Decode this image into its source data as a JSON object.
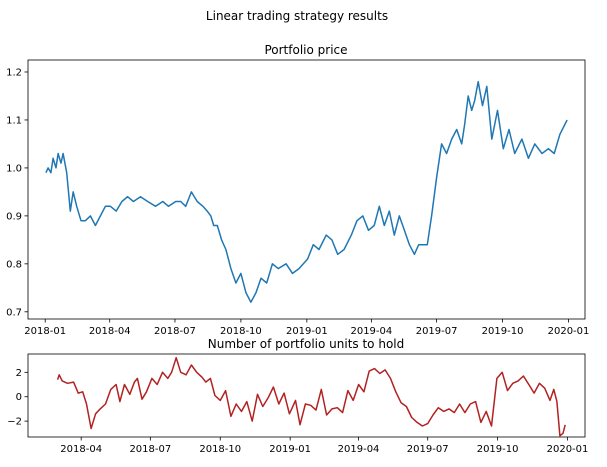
{
  "figure": {
    "suptitle": "Linear trading strategy results"
  },
  "chart_data": [
    {
      "type": "line",
      "title": "Portfolio price",
      "xlabel": "",
      "ylabel": "",
      "x_type": "date",
      "xlim": [
        "2017-12-08",
        "2020-01-24"
      ],
      "ylim": [
        0.685,
        1.225
      ],
      "xticks": [
        "2018-01",
        "2018-04",
        "2018-07",
        "2018-10",
        "2019-01",
        "2019-04",
        "2019-07",
        "2019-10",
        "2020-01"
      ],
      "yticks": [
        0.7,
        0.8,
        0.9,
        1.0,
        1.1,
        1.2
      ],
      "grid": false,
      "color": "#1f77b4",
      "series": [
        {
          "x": [
            "2018-01-02",
            "2018-01-05",
            "2018-01-09",
            "2018-01-12",
            "2018-01-16",
            "2018-01-19",
            "2018-01-23",
            "2018-01-26",
            "2018-01-31",
            "2018-02-05",
            "2018-02-09",
            "2018-02-14",
            "2018-02-20",
            "2018-02-26",
            "2018-03-05",
            "2018-03-12",
            "2018-03-19",
            "2018-03-26",
            "2018-04-02",
            "2018-04-10",
            "2018-04-18",
            "2018-04-26",
            "2018-05-04",
            "2018-05-14",
            "2018-05-24",
            "2018-06-04",
            "2018-06-14",
            "2018-06-22",
            "2018-07-02",
            "2018-07-09",
            "2018-07-16",
            "2018-07-24",
            "2018-08-01",
            "2018-08-09",
            "2018-08-15",
            "2018-08-20",
            "2018-08-24",
            "2018-08-29",
            "2018-09-04",
            "2018-09-10",
            "2018-09-17",
            "2018-09-24",
            "2018-10-01",
            "2018-10-08",
            "2018-10-15",
            "2018-10-22",
            "2018-10-29",
            "2018-11-06",
            "2018-11-14",
            "2018-11-22",
            "2018-12-03",
            "2018-12-12",
            "2018-12-21",
            "2019-01-02",
            "2019-01-10",
            "2019-01-18",
            "2019-01-28",
            "2019-02-05",
            "2019-02-13",
            "2019-02-22",
            "2019-03-04",
            "2019-03-12",
            "2019-03-20",
            "2019-03-28",
            "2019-04-05",
            "2019-04-12",
            "2019-04-19",
            "2019-04-26",
            "2019-05-03",
            "2019-05-10",
            "2019-05-17",
            "2019-05-24",
            "2019-05-31",
            "2019-06-06",
            "2019-06-12",
            "2019-06-18",
            "2019-06-24",
            "2019-07-01",
            "2019-07-08",
            "2019-07-15",
            "2019-07-22",
            "2019-07-29",
            "2019-08-05",
            "2019-08-09",
            "2019-08-14",
            "2019-08-19",
            "2019-08-23",
            "2019-08-28",
            "2019-09-03",
            "2019-09-09",
            "2019-09-16",
            "2019-09-24",
            "2019-10-02",
            "2019-10-10",
            "2019-10-18",
            "2019-10-28",
            "2019-11-06",
            "2019-11-15",
            "2019-11-25",
            "2019-12-04",
            "2019-12-12",
            "2019-12-20",
            "2019-12-30"
          ],
          "y": [
            0.99,
            1.0,
            0.99,
            1.02,
            1.0,
            1.03,
            1.01,
            1.03,
            0.99,
            0.91,
            0.95,
            0.92,
            0.89,
            0.89,
            0.9,
            0.88,
            0.9,
            0.92,
            0.92,
            0.91,
            0.93,
            0.94,
            0.93,
            0.94,
            0.93,
            0.92,
            0.93,
            0.92,
            0.93,
            0.93,
            0.92,
            0.95,
            0.93,
            0.92,
            0.91,
            0.9,
            0.88,
            0.88,
            0.85,
            0.83,
            0.79,
            0.76,
            0.78,
            0.74,
            0.72,
            0.74,
            0.77,
            0.76,
            0.8,
            0.79,
            0.8,
            0.78,
            0.79,
            0.81,
            0.84,
            0.83,
            0.86,
            0.85,
            0.82,
            0.83,
            0.86,
            0.89,
            0.9,
            0.87,
            0.88,
            0.92,
            0.88,
            0.91,
            0.86,
            0.9,
            0.87,
            0.84,
            0.82,
            0.84,
            0.84,
            0.84,
            0.9,
            0.98,
            1.05,
            1.03,
            1.06,
            1.08,
            1.05,
            1.09,
            1.15,
            1.12,
            1.14,
            1.18,
            1.13,
            1.17,
            1.06,
            1.12,
            1.04,
            1.08,
            1.03,
            1.06,
            1.02,
            1.05,
            1.03,
            1.04,
            1.03,
            1.07,
            1.1
          ]
        }
      ]
    },
    {
      "type": "line",
      "title": "Number of portfolio units to hold",
      "xlabel": "",
      "ylabel": "",
      "x_type": "date",
      "xlim": [
        "2018-01-21",
        "2020-01-24"
      ],
      "ylim": [
        -3.3,
        3.5
      ],
      "xticks": [
        "2018-04",
        "2018-07",
        "2018-10",
        "2019-01",
        "2019-04",
        "2019-07",
        "2019-10",
        "2020-01"
      ],
      "yticks": [
        -2,
        0,
        2
      ],
      "grid": false,
      "color": "#b22222",
      "series": [
        {
          "x": [
            "2018-03-01",
            "2018-03-03",
            "2018-03-07",
            "2018-03-14",
            "2018-03-22",
            "2018-03-28",
            "2018-04-03",
            "2018-04-08",
            "2018-04-14",
            "2018-04-20",
            "2018-04-26",
            "2018-05-03",
            "2018-05-10",
            "2018-05-17",
            "2018-05-22",
            "2018-05-28",
            "2018-06-04",
            "2018-06-10",
            "2018-06-14",
            "2018-06-20",
            "2018-06-26",
            "2018-07-03",
            "2018-07-10",
            "2018-07-17",
            "2018-07-24",
            "2018-07-29",
            "2018-08-04",
            "2018-08-10",
            "2018-08-17",
            "2018-08-24",
            "2018-08-31",
            "2018-09-07",
            "2018-09-12",
            "2018-09-18",
            "2018-09-24",
            "2018-10-01",
            "2018-10-08",
            "2018-10-15",
            "2018-10-22",
            "2018-10-29",
            "2018-11-05",
            "2018-11-12",
            "2018-11-19",
            "2018-11-26",
            "2018-12-03",
            "2018-12-10",
            "2018-12-17",
            "2018-12-24",
            "2018-12-31",
            "2019-01-03",
            "2019-01-08",
            "2019-01-14",
            "2019-01-21",
            "2019-01-28",
            "2019-02-04",
            "2019-02-11",
            "2019-02-18",
            "2019-02-25",
            "2019-03-04",
            "2019-03-11",
            "2019-03-18",
            "2019-03-25",
            "2019-04-01",
            "2019-04-08",
            "2019-04-15",
            "2019-04-22",
            "2019-04-29",
            "2019-05-06",
            "2019-05-13",
            "2019-05-20",
            "2019-05-27",
            "2019-06-03",
            "2019-06-10",
            "2019-06-17",
            "2019-06-24",
            "2019-07-01",
            "2019-07-08",
            "2019-07-15",
            "2019-07-22",
            "2019-07-29",
            "2019-08-05",
            "2019-08-12",
            "2019-08-19",
            "2019-08-26",
            "2019-09-02",
            "2019-09-09",
            "2019-09-16",
            "2019-09-23",
            "2019-09-30",
            "2019-10-07",
            "2019-10-14",
            "2019-10-21",
            "2019-10-28",
            "2019-11-04",
            "2019-11-11",
            "2019-11-18",
            "2019-11-25",
            "2019-12-02",
            "2019-12-09",
            "2019-12-14",
            "2019-12-18",
            "2019-12-22",
            "2019-12-26",
            "2019-12-29"
          ],
          "y": [
            1.4,
            1.8,
            1.3,
            1.1,
            1.2,
            0.3,
            0.4,
            -0.6,
            -2.6,
            -1.4,
            -1.0,
            -0.6,
            0.6,
            1.0,
            -0.4,
            1.0,
            0.2,
            1.2,
            1.5,
            -0.2,
            0.4,
            1.5,
            1.0,
            2.0,
            1.5,
            2.0,
            3.2,
            2.0,
            1.8,
            2.6,
            2.0,
            1.6,
            1.2,
            1.5,
            0.1,
            -0.3,
            0.5,
            -1.6,
            -0.6,
            -1.2,
            -0.4,
            -2.0,
            0.2,
            -0.8,
            -0.1,
            0.8,
            -0.6,
            0.3,
            -1.4,
            -1.0,
            -0.3,
            -2.3,
            -0.6,
            -0.7,
            -1.1,
            0.6,
            -1.5,
            -1.0,
            -0.9,
            -1.3,
            0.5,
            -0.3,
            1.0,
            0.4,
            2.1,
            2.3,
            1.9,
            2.2,
            1.5,
            0.4,
            -0.5,
            -0.8,
            -1.7,
            -2.1,
            -2.4,
            -2.2,
            -1.5,
            -0.9,
            -1.2,
            -1.0,
            -1.3,
            -0.6,
            -1.3,
            -0.6,
            -0.4,
            -2.1,
            -1.2,
            -2.4,
            1.5,
            2.0,
            0.5,
            1.1,
            1.3,
            1.7,
            1.0,
            0.3,
            1.1,
            0.7,
            -0.3,
            0.6,
            -0.4,
            -3.2,
            -3.0,
            -2.3
          ]
        }
      ]
    }
  ]
}
